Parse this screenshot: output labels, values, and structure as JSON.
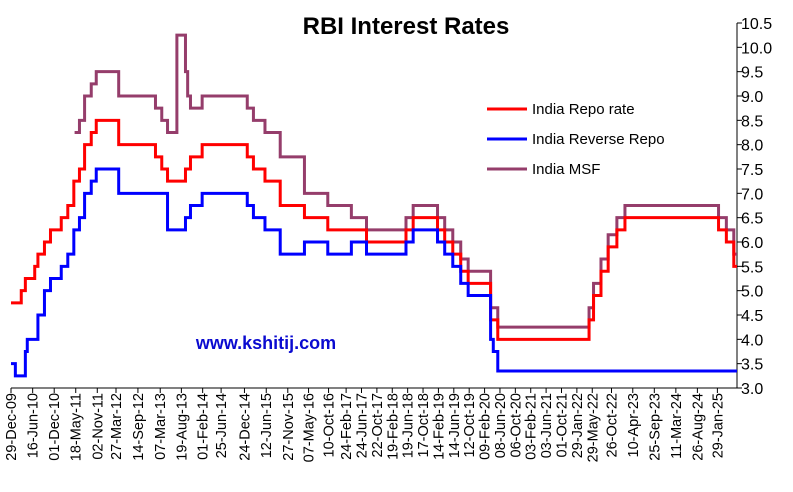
{
  "chart_data": {
    "type": "line",
    "title": "RBI Interest Rates",
    "annotation": "www.kshitij.com",
    "xlabel": "",
    "ylabel": "",
    "ylim": [
      3.0,
      10.5
    ],
    "yticks": [
      "3.0",
      "3.5",
      "4.0",
      "4.5",
      "5.0",
      "5.5",
      "6.0",
      "6.5",
      "7.0",
      "7.5",
      "8.0",
      "8.5",
      "9.0",
      "9.5",
      "10.0",
      "10.5"
    ],
    "xlim": [
      "2009-12-29",
      "2025-07-01"
    ],
    "xticks": [
      {
        "date": "2009-12-29",
        "label": "29-Dec-09"
      },
      {
        "date": "2010-06-16",
        "label": "16-Jun-10"
      },
      {
        "date": "2010-12-01",
        "label": "01-Dec-10"
      },
      {
        "date": "2011-05-18",
        "label": "18-May-11"
      },
      {
        "date": "2011-11-02",
        "label": "02-Nov-11"
      },
      {
        "date": "2012-03-27",
        "label": "27-Mar-12"
      },
      {
        "date": "2012-09-14",
        "label": "14-Sep-12"
      },
      {
        "date": "2013-03-07",
        "label": "07-Mar-13"
      },
      {
        "date": "2013-08-19",
        "label": "19-Aug-13"
      },
      {
        "date": "2014-02-01",
        "label": "01-Feb-14"
      },
      {
        "date": "2014-06-25",
        "label": "25-Jun-14"
      },
      {
        "date": "2014-12-24",
        "label": "24-Dec-14"
      },
      {
        "date": "2015-06-12",
        "label": "12-Jun-15"
      },
      {
        "date": "2015-11-27",
        "label": "27-Nov-15"
      },
      {
        "date": "2016-05-07",
        "label": "07-May-16"
      },
      {
        "date": "2016-10-10",
        "label": "10-Oct-16"
      },
      {
        "date": "2017-02-24",
        "label": "24-Feb-17"
      },
      {
        "date": "2017-06-24",
        "label": "24-Jun-17"
      },
      {
        "date": "2017-10-22",
        "label": "22-Oct-17"
      },
      {
        "date": "2018-02-19",
        "label": "19-Feb-18"
      },
      {
        "date": "2018-06-19",
        "label": "19-Jun-18"
      },
      {
        "date": "2018-10-17",
        "label": "17-Oct-18"
      },
      {
        "date": "2019-02-14",
        "label": "14-Feb-19"
      },
      {
        "date": "2019-06-14",
        "label": "14-Jun-19"
      },
      {
        "date": "2019-10-12",
        "label": "12-Oct-19"
      },
      {
        "date": "2020-02-09",
        "label": "09-Feb-20"
      },
      {
        "date": "2020-06-08",
        "label": "08-Jun-20"
      },
      {
        "date": "2020-10-06",
        "label": "06-Oct-20"
      },
      {
        "date": "2021-02-03",
        "label": "03-Feb-21"
      },
      {
        "date": "2021-06-03",
        "label": "03-Jun-21"
      },
      {
        "date": "2021-10-01",
        "label": "01-Oct-21"
      },
      {
        "date": "2022-01-29",
        "label": "29-Jan-22"
      },
      {
        "date": "2022-05-29",
        "label": "29-May-22"
      },
      {
        "date": "2022-10-26",
        "label": "26-Oct-22"
      },
      {
        "date": "2023-04-10",
        "label": "10-Apr-23"
      },
      {
        "date": "2023-09-25",
        "label": "25-Sep-23"
      },
      {
        "date": "2024-03-11",
        "label": "11-Mar-24"
      },
      {
        "date": "2024-08-26",
        "label": "26-Aug-24"
      },
      {
        "date": "2025-01-29",
        "label": "29-Jan-25"
      }
    ],
    "legend_position": "right-inside",
    "grid": false,
    "series": [
      {
        "name": "India Repo rate",
        "color": "#ff0000",
        "step": true,
        "points": [
          [
            "2009-12-29",
            4.75
          ],
          [
            "2010-03-19",
            5.0
          ],
          [
            "2010-04-20",
            5.25
          ],
          [
            "2010-07-02",
            5.5
          ],
          [
            "2010-07-27",
            5.75
          ],
          [
            "2010-09-16",
            6.0
          ],
          [
            "2010-11-02",
            6.25
          ],
          [
            "2011-01-25",
            6.5
          ],
          [
            "2011-03-17",
            6.75
          ],
          [
            "2011-05-03",
            7.25
          ],
          [
            "2011-06-16",
            7.5
          ],
          [
            "2011-07-26",
            8.0
          ],
          [
            "2011-09-16",
            8.25
          ],
          [
            "2011-10-25",
            8.5
          ],
          [
            "2012-04-17",
            8.0
          ],
          [
            "2013-01-29",
            7.75
          ],
          [
            "2013-03-19",
            7.5
          ],
          [
            "2013-05-03",
            7.25
          ],
          [
            "2013-09-20",
            7.5
          ],
          [
            "2013-10-29",
            7.75
          ],
          [
            "2014-01-28",
            8.0
          ],
          [
            "2015-01-15",
            7.75
          ],
          [
            "2015-03-04",
            7.5
          ],
          [
            "2015-06-02",
            7.25
          ],
          [
            "2015-09-29",
            6.75
          ],
          [
            "2016-04-05",
            6.5
          ],
          [
            "2016-10-04",
            6.25
          ],
          [
            "2017-08-02",
            6.0
          ],
          [
            "2018-06-06",
            6.25
          ],
          [
            "2018-08-01",
            6.5
          ],
          [
            "2019-02-07",
            6.25
          ],
          [
            "2019-04-04",
            6.0
          ],
          [
            "2019-06-06",
            5.75
          ],
          [
            "2019-08-07",
            5.4
          ],
          [
            "2019-10-04",
            5.15
          ],
          [
            "2020-03-27",
            4.4
          ],
          [
            "2020-05-22",
            4.0
          ],
          [
            "2022-05-04",
            4.4
          ],
          [
            "2022-06-08",
            4.9
          ],
          [
            "2022-08-05",
            5.4
          ],
          [
            "2022-09-30",
            5.9
          ],
          [
            "2022-12-07",
            6.25
          ],
          [
            "2023-02-08",
            6.5
          ],
          [
            "2025-02-07",
            6.25
          ],
          [
            "2025-04-09",
            6.0
          ],
          [
            "2025-06-06",
            5.5
          ],
          [
            "2025-07-01",
            5.5
          ]
        ]
      },
      {
        "name": "India Reverse Repo",
        "color": "#0000ff",
        "step": true,
        "points": [
          [
            "2009-12-29",
            3.5
          ],
          [
            "2010-02-01",
            3.25
          ],
          [
            "2010-04-20",
            3.75
          ],
          [
            "2010-05-05",
            4.0
          ],
          [
            "2010-07-27",
            4.5
          ],
          [
            "2010-09-16",
            5.0
          ],
          [
            "2010-11-02",
            5.25
          ],
          [
            "2011-01-25",
            5.5
          ],
          [
            "2011-03-17",
            5.75
          ],
          [
            "2011-05-03",
            6.25
          ],
          [
            "2011-06-16",
            6.5
          ],
          [
            "2011-07-26",
            7.0
          ],
          [
            "2011-09-16",
            7.25
          ],
          [
            "2011-10-25",
            7.5
          ],
          [
            "2012-04-17",
            7.0
          ],
          [
            "2013-05-03",
            6.25
          ],
          [
            "2013-09-20",
            6.5
          ],
          [
            "2013-10-29",
            6.75
          ],
          [
            "2014-01-28",
            7.0
          ],
          [
            "2015-01-15",
            6.75
          ],
          [
            "2015-03-04",
            6.5
          ],
          [
            "2015-06-02",
            6.25
          ],
          [
            "2015-09-29",
            5.75
          ],
          [
            "2016-04-05",
            6.0
          ],
          [
            "2016-10-04",
            5.75
          ],
          [
            "2017-04-06",
            6.0
          ],
          [
            "2017-08-02",
            5.75
          ],
          [
            "2018-06-06",
            6.0
          ],
          [
            "2018-08-01",
            6.25
          ],
          [
            "2019-02-07",
            6.0
          ],
          [
            "2019-04-04",
            5.75
          ],
          [
            "2019-06-06",
            5.5
          ],
          [
            "2019-08-07",
            5.15
          ],
          [
            "2019-10-04",
            4.9
          ],
          [
            "2020-03-27",
            4.0
          ],
          [
            "2020-04-17",
            3.75
          ],
          [
            "2020-05-22",
            3.35
          ],
          [
            "2025-07-01",
            3.35
          ]
        ]
      },
      {
        "name": "India MSF",
        "color": "#953d6b",
        "step": true,
        "points": [
          [
            "2011-05-09",
            8.25
          ],
          [
            "2011-06-16",
            8.5
          ],
          [
            "2011-07-26",
            9.0
          ],
          [
            "2011-09-16",
            9.25
          ],
          [
            "2011-10-25",
            9.5
          ],
          [
            "2012-04-17",
            9.0
          ],
          [
            "2013-01-29",
            8.75
          ],
          [
            "2013-03-19",
            8.5
          ],
          [
            "2013-05-03",
            8.25
          ],
          [
            "2013-07-15",
            10.25
          ],
          [
            "2013-09-20",
            9.5
          ],
          [
            "2013-10-07",
            9.0
          ],
          [
            "2013-10-29",
            8.75
          ],
          [
            "2014-01-28",
            9.0
          ],
          [
            "2015-01-15",
            8.75
          ],
          [
            "2015-03-04",
            8.5
          ],
          [
            "2015-06-02",
            8.25
          ],
          [
            "2015-09-29",
            7.75
          ],
          [
            "2016-04-05",
            7.0
          ],
          [
            "2016-10-04",
            6.75
          ],
          [
            "2017-04-06",
            6.5
          ],
          [
            "2017-08-02",
            6.25
          ],
          [
            "2018-06-06",
            6.5
          ],
          [
            "2018-08-01",
            6.75
          ],
          [
            "2019-02-07",
            6.5
          ],
          [
            "2019-04-04",
            6.25
          ],
          [
            "2019-06-06",
            6.0
          ],
          [
            "2019-08-07",
            5.65
          ],
          [
            "2019-10-04",
            5.4
          ],
          [
            "2020-03-27",
            4.65
          ],
          [
            "2020-05-22",
            4.25
          ],
          [
            "2022-05-04",
            4.65
          ],
          [
            "2022-06-08",
            5.15
          ],
          [
            "2022-08-05",
            5.65
          ],
          [
            "2022-09-30",
            6.15
          ],
          [
            "2022-12-07",
            6.5
          ],
          [
            "2023-02-08",
            6.75
          ],
          [
            "2025-02-07",
            6.5
          ],
          [
            "2025-04-09",
            6.25
          ],
          [
            "2025-06-06",
            5.75
          ],
          [
            "2025-07-01",
            5.75
          ]
        ]
      }
    ]
  }
}
